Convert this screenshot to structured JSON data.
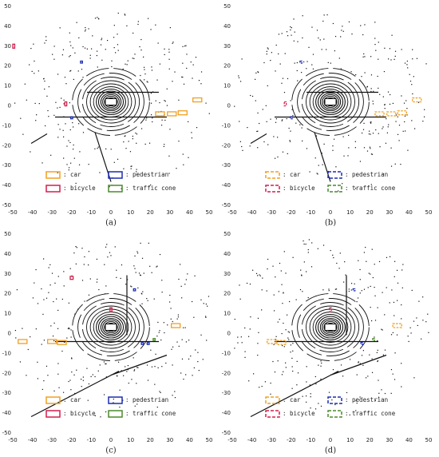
{
  "panels": [
    {
      "caption": "(a)",
      "box_style": "solid",
      "xlim": [
        -50,
        50
      ],
      "ylim": [
        -50,
        50
      ],
      "xticks": [
        -50,
        -40,
        -30,
        -20,
        -10,
        0,
        10,
        20,
        30,
        40,
        50
      ],
      "yticks": [
        -50,
        -40,
        -30,
        -20,
        -10,
        0,
        10,
        20,
        30,
        40,
        50
      ],
      "legend": [
        {
          "label": ": car",
          "color": "#f0a020"
        },
        {
          "label": ": pedestrian",
          "color": "#1c2db0"
        },
        {
          "label": ": bicycle",
          "color": "#d41f4c"
        },
        {
          "label": ": traffic cone",
          "color": "#4a8a2c"
        }
      ],
      "objects": [
        {
          "class": 0,
          "x": 25,
          "y": -4,
          "w": 4.5,
          "h": 2
        },
        {
          "class": 0,
          "x": 31,
          "y": -4,
          "w": 4.5,
          "h": 2
        },
        {
          "class": 0,
          "x": 36.5,
          "y": -3.5,
          "w": 4.5,
          "h": 2
        },
        {
          "class": 0,
          "x": 44,
          "y": 3,
          "w": 4.5,
          "h": 2
        },
        {
          "class": 2,
          "x": -49.5,
          "y": 30,
          "w": 1,
          "h": 2
        },
        {
          "class": 2,
          "x": -23,
          "y": 1,
          "w": 1,
          "h": 2
        },
        {
          "class": 1,
          "x": -15,
          "y": 22,
          "w": 1,
          "h": 1
        },
        {
          "class": 1,
          "x": -20,
          "y": -6,
          "w": 1,
          "h": 1
        }
      ]
    },
    {
      "caption": "(b)",
      "box_style": "dashed",
      "xlim": [
        -50,
        50
      ],
      "ylim": [
        -50,
        50
      ],
      "xticks": [
        -50,
        -40,
        -30,
        -20,
        -10,
        0,
        10,
        20,
        30,
        40,
        50
      ],
      "yticks": [
        -50,
        -40,
        -30,
        -20,
        -10,
        0,
        10,
        20,
        30,
        40,
        50
      ],
      "legend": [
        {
          "label": ": car",
          "color": "#f0a020"
        },
        {
          "label": ": pedestrian",
          "color": "#1c2db0"
        },
        {
          "label": ": bicycle",
          "color": "#d41f4c"
        },
        {
          "label": ": traffic cone",
          "color": "#4a8a2c"
        }
      ],
      "objects": [
        {
          "class": 0,
          "x": 25,
          "y": -4,
          "w": 4.5,
          "h": 2
        },
        {
          "class": 0,
          "x": 31,
          "y": -4,
          "w": 4.5,
          "h": 2
        },
        {
          "class": 0,
          "x": 36.5,
          "y": -3.5,
          "w": 4.5,
          "h": 2
        },
        {
          "class": 0,
          "x": 44,
          "y": 3,
          "w": 4.5,
          "h": 2
        },
        {
          "class": 2,
          "x": -23,
          "y": 1,
          "w": 1,
          "h": 2
        },
        {
          "class": 1,
          "x": -15,
          "y": 22,
          "w": 1,
          "h": 1
        },
        {
          "class": 1,
          "x": -20,
          "y": -6,
          "w": 1,
          "h": 1
        }
      ]
    },
    {
      "caption": "(c)",
      "box_style": "solid",
      "xlim": [
        -50,
        50
      ],
      "ylim": [
        -50,
        50
      ],
      "xticks": [
        -50,
        -40,
        -30,
        -20,
        -10,
        0,
        10,
        20,
        30,
        40,
        50
      ],
      "yticks": [
        -50,
        -40,
        -30,
        -20,
        -10,
        0,
        10,
        20,
        30,
        40,
        50
      ],
      "legend": [
        {
          "label": ": car",
          "color": "#f0a020"
        },
        {
          "label": ": pedestrian",
          "color": "#1c2db0"
        },
        {
          "label": ": bicycle",
          "color": "#d41f4c"
        },
        {
          "label": ": traffic cone",
          "color": "#4a8a2c"
        }
      ],
      "objects": [
        {
          "class": 0,
          "x": -45,
          "y": -4,
          "w": 4.5,
          "h": 2
        },
        {
          "class": 0,
          "x": -30,
          "y": -4,
          "w": 4.5,
          "h": 2
        },
        {
          "class": 0,
          "x": -25,
          "y": -4.5,
          "w": 4.5,
          "h": 2
        },
        {
          "class": 0,
          "x": 33,
          "y": 4,
          "w": 4.5,
          "h": 2
        },
        {
          "class": 2,
          "x": -20,
          "y": 28,
          "w": 1.5,
          "h": 1.5
        },
        {
          "class": 2,
          "x": 0,
          "y": 12,
          "w": 1,
          "h": 2
        },
        {
          "class": 1,
          "x": 12,
          "y": 22,
          "w": 1,
          "h": 1
        },
        {
          "class": 1,
          "x": 16,
          "y": -5,
          "w": 1,
          "h": 1
        },
        {
          "class": 1,
          "x": 19,
          "y": -5,
          "w": 1,
          "h": 1
        },
        {
          "class": 3,
          "x": 22,
          "y": -3,
          "w": 1,
          "h": 1
        }
      ]
    },
    {
      "caption": "(d)",
      "box_style": "dashed",
      "xlim": [
        -50,
        50
      ],
      "ylim": [
        -50,
        50
      ],
      "xticks": [
        -50,
        -40,
        -30,
        -20,
        -10,
        0,
        10,
        20,
        30,
        40,
        50
      ],
      "yticks": [
        -50,
        -40,
        -30,
        -20,
        -10,
        0,
        10,
        20,
        30,
        40,
        50
      ],
      "legend": [
        {
          "label": ": car",
          "color": "#f0a020"
        },
        {
          "label": ": pedestrian",
          "color": "#1c2db0"
        },
        {
          "label": ": bicycle",
          "color": "#d41f4c"
        },
        {
          "label": ": traffic cone",
          "color": "#4a8a2c"
        }
      ],
      "objects": [
        {
          "class": 0,
          "x": -30,
          "y": -4,
          "w": 4.5,
          "h": 2
        },
        {
          "class": 0,
          "x": -25,
          "y": -4.5,
          "w": 4.5,
          "h": 2
        },
        {
          "class": 0,
          "x": 34,
          "y": 4,
          "w": 4.5,
          "h": 2
        },
        {
          "class": 2,
          "x": 0,
          "y": 12,
          "w": 1,
          "h": 2
        },
        {
          "class": 1,
          "x": 12,
          "y": 22,
          "w": 1,
          "h": 1
        },
        {
          "class": 1,
          "x": 16,
          "y": -5,
          "w": 1,
          "h": 1
        },
        {
          "class": 3,
          "x": 22,
          "y": -3,
          "w": 1,
          "h": 1
        }
      ]
    }
  ]
}
